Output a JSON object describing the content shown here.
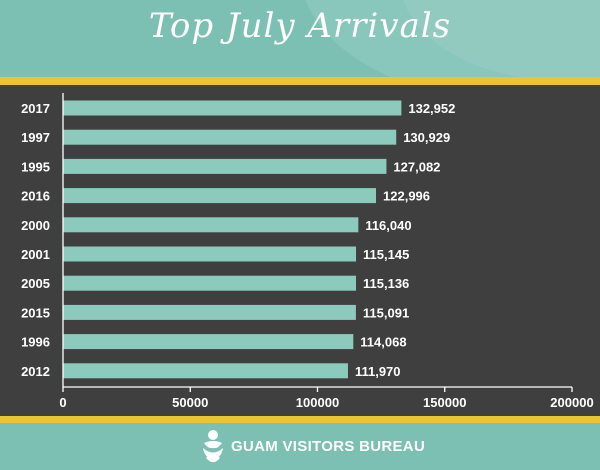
{
  "header": {
    "title": "Top July Arrivals"
  },
  "footer": {
    "brand": "GUAM VISITORS BUREAU"
  },
  "colors": {
    "teal": "#7cc0b4",
    "gold": "#e8c534",
    "plot_bg": "#3f3f3f",
    "bar": "#8ccabd"
  },
  "chart_data": {
    "type": "bar",
    "orientation": "horizontal",
    "title": "Top July Arrivals",
    "categories": [
      "2017",
      "1997",
      "1995",
      "2016",
      "2000",
      "2001",
      "2005",
      "2015",
      "1996",
      "2012"
    ],
    "values": [
      132952,
      130929,
      127082,
      122996,
      116040,
      115145,
      115136,
      115091,
      114068,
      111970
    ],
    "value_labels": [
      "132,952",
      "130,929",
      "127,082",
      "122,996",
      "116,040",
      "115,145",
      "115,136",
      "115,091",
      "114,068",
      "111,970"
    ],
    "xlim": [
      0,
      200000
    ],
    "x_ticks": [
      0,
      50000,
      100000,
      150000,
      200000
    ],
    "x_tick_labels": [
      "0",
      "50000",
      "100000",
      "150000",
      "200000"
    ],
    "grid": false,
    "legend": "none"
  }
}
